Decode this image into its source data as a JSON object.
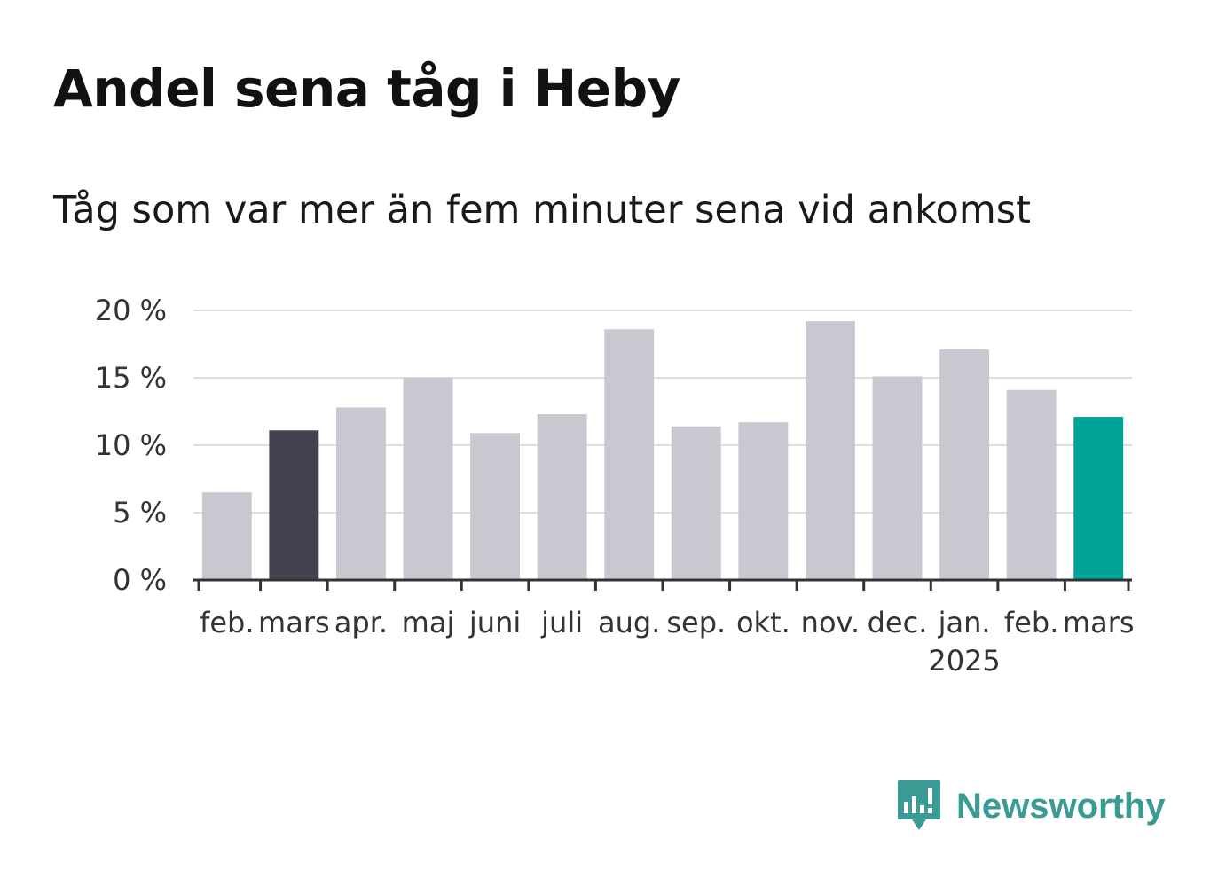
{
  "title": "Andel sena tåg i Heby",
  "subtitle": "Tåg som var mer än fem minuter sena vid ankomst",
  "brand": {
    "name": "Newsworthy",
    "icon": "newsworthy-logo-icon",
    "color": "#3a9a94"
  },
  "chart_data": {
    "type": "bar",
    "categories": [
      "feb.",
      "mars",
      "apr.",
      "maj",
      "juni",
      "juli",
      "aug.",
      "sep.",
      "okt.",
      "nov.",
      "dec.",
      "jan.",
      "feb.",
      "mars"
    ],
    "year_label": {
      "text": "2025",
      "under_category_index": 11
    },
    "values": [
      6.5,
      11.1,
      12.8,
      15.0,
      10.9,
      12.3,
      18.6,
      11.4,
      11.7,
      19.2,
      15.1,
      17.1,
      14.1,
      12.1
    ],
    "unit": "%",
    "yticks": [
      "0 %",
      "5 %",
      "10 %",
      "15 %",
      "20 %"
    ],
    "ylim": [
      0,
      20
    ],
    "grid": true,
    "colors": {
      "default": "#c9c8d0",
      "highlight_previous_year": "#44424f",
      "highlight_latest": "#00a398"
    },
    "highlight": {
      "1": "highlight_previous_year",
      "13": "highlight_latest"
    }
  }
}
